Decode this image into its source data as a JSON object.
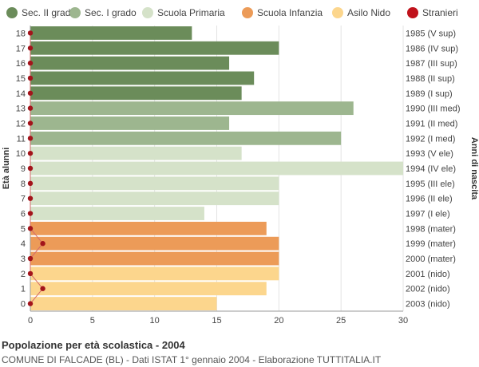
{
  "chart_data": {
    "type": "bar",
    "orientation": "horizontal",
    "ylabel": "Età alunni",
    "ylabel_right": "Anni di nascita",
    "xlim": [
      0,
      30
    ],
    "xticks": [
      0,
      5,
      10,
      15,
      20,
      25,
      30
    ],
    "grid": true,
    "legend_position": "top",
    "legend": [
      {
        "name": "Sec. II grado",
        "color": "#6b8c5a"
      },
      {
        "name": "Sec. I grado",
        "color": "#9db68f"
      },
      {
        "name": "Scuola Primaria",
        "color": "#d5e2c9"
      },
      {
        "name": "Scuola Infanzia",
        "color": "#ec9b58"
      },
      {
        "name": "Asilo Nido",
        "color": "#fcd68d"
      },
      {
        "name": "Stranieri",
        "color": "#c0121b"
      }
    ],
    "rows": [
      {
        "age": 18,
        "year": "1985 (V sup)",
        "value": 13,
        "foreign": 0,
        "group": 0
      },
      {
        "age": 17,
        "year": "1986 (IV sup)",
        "value": 20,
        "foreign": 0,
        "group": 0
      },
      {
        "age": 16,
        "year": "1987 (III sup)",
        "value": 16,
        "foreign": 0,
        "group": 0
      },
      {
        "age": 15,
        "year": "1988 (II sup)",
        "value": 18,
        "foreign": 0,
        "group": 0
      },
      {
        "age": 14,
        "year": "1989 (I sup)",
        "value": 17,
        "foreign": 0,
        "group": 0
      },
      {
        "age": 13,
        "year": "1990 (III med)",
        "value": 26,
        "foreign": 0,
        "group": 1
      },
      {
        "age": 12,
        "year": "1991 (II med)",
        "value": 16,
        "foreign": 0,
        "group": 1
      },
      {
        "age": 11,
        "year": "1992 (I med)",
        "value": 25,
        "foreign": 0,
        "group": 1
      },
      {
        "age": 10,
        "year": "1993 (V ele)",
        "value": 17,
        "foreign": 0,
        "group": 2
      },
      {
        "age": 9,
        "year": "1994 (IV ele)",
        "value": 30,
        "foreign": 0,
        "group": 2
      },
      {
        "age": 8,
        "year": "1995 (III ele)",
        "value": 20,
        "foreign": 0,
        "group": 2
      },
      {
        "age": 7,
        "year": "1996 (II ele)",
        "value": 20,
        "foreign": 0,
        "group": 2
      },
      {
        "age": 6,
        "year": "1997 (I ele)",
        "value": 14,
        "foreign": 0,
        "group": 2
      },
      {
        "age": 5,
        "year": "1998 (mater)",
        "value": 19,
        "foreign": 0,
        "group": 3
      },
      {
        "age": 4,
        "year": "1999 (mater)",
        "value": 20,
        "foreign": 1,
        "group": 3
      },
      {
        "age": 3,
        "year": "2000 (mater)",
        "value": 20,
        "foreign": 0,
        "group": 3
      },
      {
        "age": 2,
        "year": "2001 (nido)",
        "value": 20,
        "foreign": 0,
        "group": 4
      },
      {
        "age": 1,
        "year": "2002 (nido)",
        "value": 19,
        "foreign": 1,
        "group": 4
      },
      {
        "age": 0,
        "year": "2003 (nido)",
        "value": 15,
        "foreign": 0,
        "group": 4
      }
    ]
  },
  "footer": {
    "title": "Popolazione per età scolastica - 2004",
    "subtitle": "COMUNE DI FALCADE (BL) - Dati ISTAT 1° gennaio 2004 - Elaborazione TUTTITALIA.IT"
  }
}
